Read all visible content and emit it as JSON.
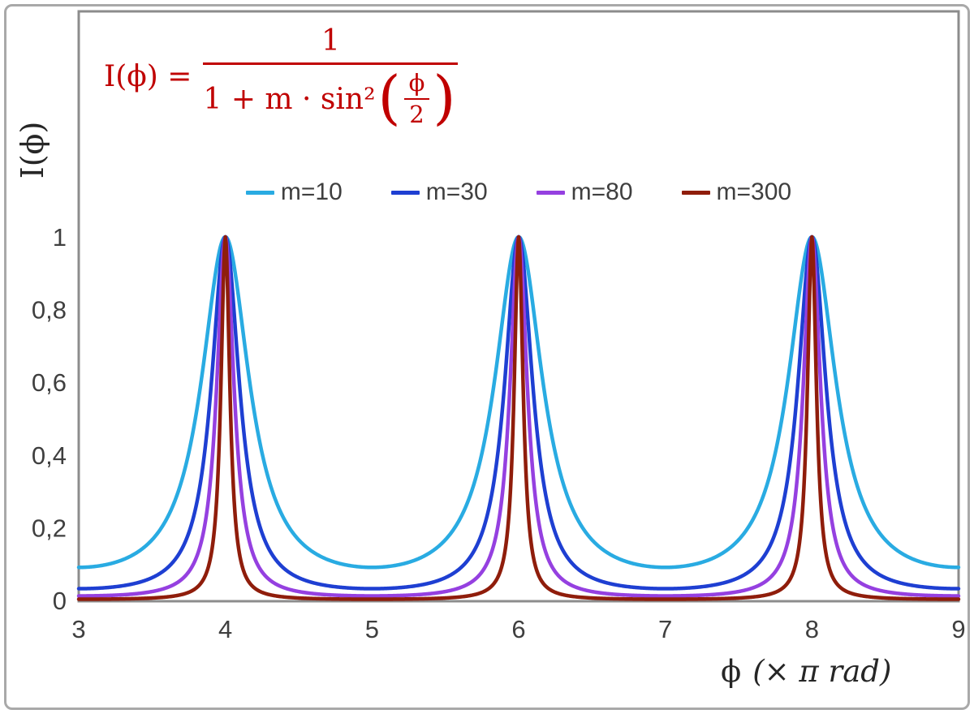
{
  "formula": {
    "lhs": "I(ϕ) =",
    "numerator": "1",
    "denominator_prefix": "1 + m · sin²",
    "inner_numerator": "ϕ",
    "inner_denominator": "2"
  },
  "axes": {
    "ylabel": "I(ϕ)",
    "xlabel_symbol": "ϕ",
    "xlabel_units": "(× π rad)"
  },
  "colors": {
    "formula_red": "#C00000",
    "frame_gray": "#8C8C8C",
    "tick_text": "#3F3F3F",
    "outer_border": "#A9A9A9"
  },
  "chart_data": {
    "type": "line",
    "function": "I(phi) = 1 / (1 + m * sin^2(phi/2))",
    "x": {
      "label": "ϕ (× π rad)",
      "min": 3,
      "max": 9,
      "ticks": [
        3,
        4,
        5,
        6,
        7,
        8,
        9
      ],
      "unit": "π rad"
    },
    "y": {
      "label": "I(ϕ)",
      "min": 0,
      "max": 1,
      "ticks": [
        0,
        0.2,
        0.4,
        0.6,
        0.8,
        1
      ],
      "tick_labels": [
        "0",
        "0,2",
        "0,4",
        "0,6",
        "0,8",
        "1"
      ]
    },
    "series": [
      {
        "name": "m=10",
        "m": 10,
        "color": "#29ABE2"
      },
      {
        "name": "m=30",
        "m": 30,
        "color": "#1E3FD2"
      },
      {
        "name": "m=80",
        "m": 80,
        "color": "#9540E0"
      },
      {
        "name": "m=300",
        "m": 300,
        "color": "#8F1D0B"
      }
    ],
    "peaks_at_x": [
      4,
      6,
      8
    ],
    "peak_value": 1,
    "legend_position": "top-center",
    "grid": false
  }
}
